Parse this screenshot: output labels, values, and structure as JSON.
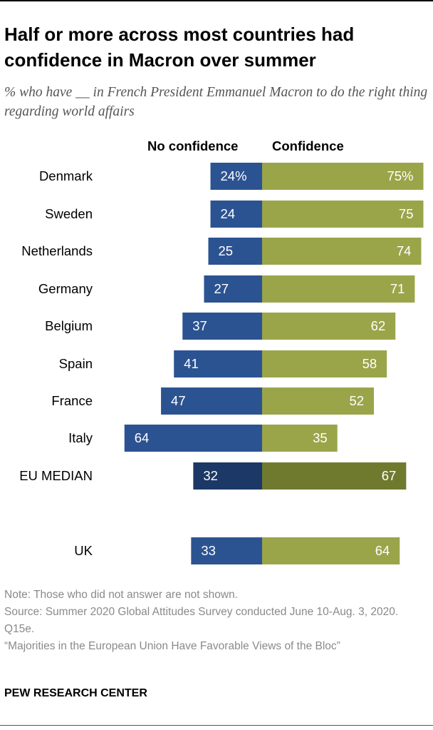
{
  "header": {
    "title": "Half or more across most countries had confidence in Macron over summer",
    "subtitle": "% who have __ in French President Emmanuel Macron to do the right thing regarding world affairs"
  },
  "chart_data": {
    "type": "bar",
    "layout": "diverging",
    "column_headers": {
      "negative": "No confidence",
      "positive": "Confidence"
    },
    "colors": {
      "negative": "#2c5391",
      "positive": "#9aa54a",
      "negative_median": "#1b3866",
      "positive_median": "#6f7a2f"
    },
    "categories": [
      "Denmark",
      "Sweden",
      "Netherlands",
      "Germany",
      "Belgium",
      "Spain",
      "France",
      "Italy",
      "EU MEDIAN",
      "UK"
    ],
    "series": [
      {
        "name": "No confidence",
        "values": [
          24,
          24,
          25,
          27,
          37,
          41,
          47,
          64,
          32,
          33
        ],
        "labels": [
          "24%",
          "24",
          "25",
          "27",
          "37",
          "41",
          "47",
          "64",
          "32",
          "33"
        ]
      },
      {
        "name": "Confidence",
        "values": [
          75,
          75,
          74,
          71,
          62,
          58,
          52,
          35,
          67,
          64
        ],
        "labels": [
          "75%",
          "75",
          "74",
          "71",
          "62",
          "58",
          "52",
          "35",
          "67",
          "64"
        ]
      }
    ],
    "highlight": [
      "EU MEDIAN"
    ]
  },
  "notes": {
    "note": "Note: Those who did not answer are not shown.",
    "source": "Source: Summer 2020 Global Attitudes Survey conducted June 10-Aug. 3, 2020. Q15e.",
    "report": "“Majorities in the European Union Have Favorable Views of the Bloc”"
  },
  "credit": "PEW RESEARCH CENTER"
}
